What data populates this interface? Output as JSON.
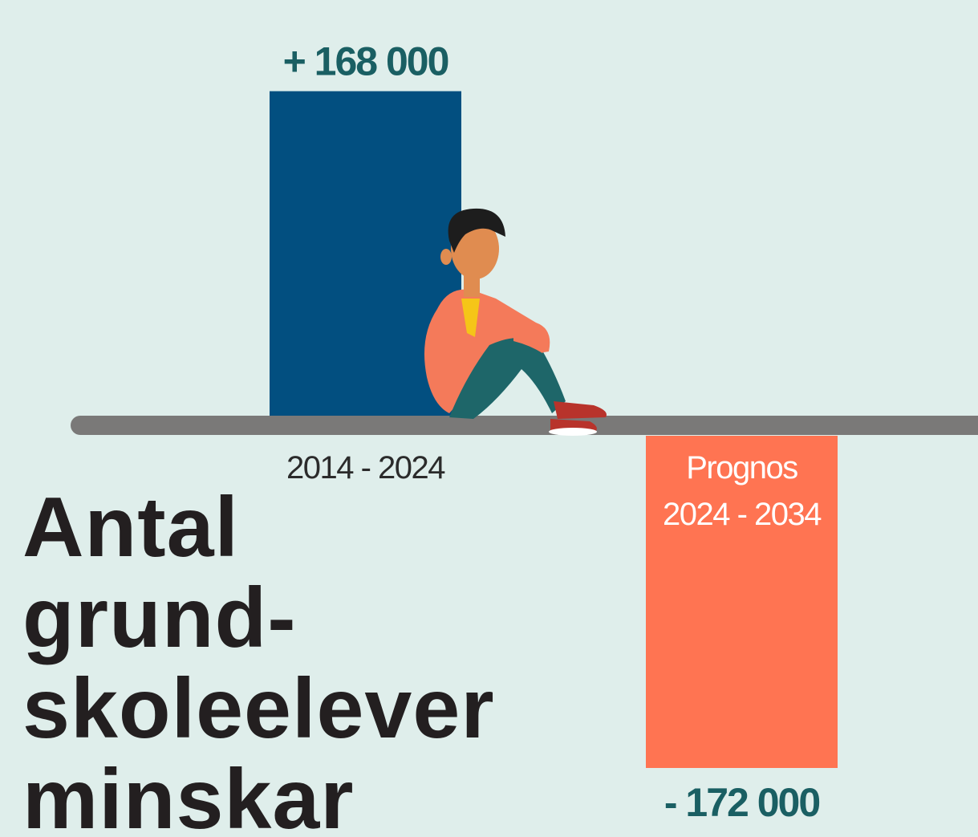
{
  "chart_data": {
    "type": "bar",
    "title": "Antal\ngrund-\nskoleelever\nminskar",
    "categories": [
      "2014 - 2024",
      "Prognos\n2024 - 2034"
    ],
    "values": [
      168000,
      -172000
    ],
    "value_labels": [
      "+ 168 000",
      "- 172 000"
    ],
    "colors": [
      "#024f80",
      "#ff7452"
    ]
  }
}
